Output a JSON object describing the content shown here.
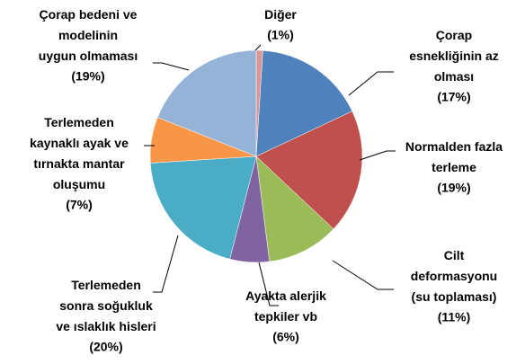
{
  "chart_data": {
    "type": "pie",
    "categories": [
      "Diğer",
      "Çorap\nesnekliğinin az\nolması",
      "Normalden fazla\nterleme",
      "Cilt\ndeformasyonu\n(su toplaması)",
      "Ayakta alerjik\ntepkiler vb",
      "Terlemeden\nsonra soğukluk\nve ıslaklık hisleri",
      "Terlemeden\nkaynaklı ayak ve\ntırnakta mantar\noluşumu",
      "Çorap bedeni  ve\nmodelinin\nuygun olmaması"
    ],
    "values": [
      1,
      17,
      19,
      11,
      6,
      20,
      7,
      19
    ],
    "value_labels": [
      "(1%)",
      "(17%)",
      "(19%)",
      "(11%)",
      "(6%)",
      "(20%)",
      "(7%)",
      "(19%)"
    ],
    "colors": [
      "#d99694",
      "#4f81bd",
      "#c0504d",
      "#9bbb59",
      "#8064a2",
      "#4bacc6",
      "#f79646",
      "#95b3d7"
    ]
  }
}
